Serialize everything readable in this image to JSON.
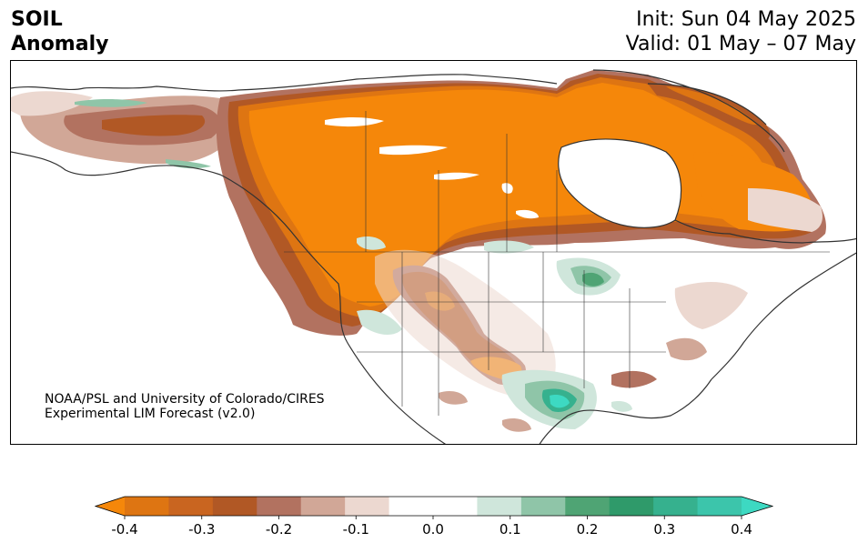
{
  "title": {
    "line1": "SOIL",
    "line2": "Anomaly"
  },
  "init": "Init: Sun 04 May 2025",
  "valid": "Valid: 01 May – 07 May",
  "credit": {
    "line1": "NOAA/PSL and University of Colorado/CIRES",
    "line2": "Experimental LIM Forecast (v2.0)"
  },
  "colorbar": {
    "colors": [
      "#f5870a",
      "#de7512",
      "#c96520",
      "#b15825",
      "#b27260",
      "#d1a797",
      "#ecd8d0",
      "#ffffff",
      "#ffffff",
      "#cfe6db",
      "#8fc5a8",
      "#4fa474",
      "#2f9a6a",
      "#36b18e",
      "#3cc5ab",
      "#3dd9c2"
    ],
    "ticks": [
      "-0.4",
      "-0.3",
      "-0.2",
      "-0.1",
      "0.0",
      "0.1",
      "0.2",
      "0.3",
      "0.4"
    ]
  }
}
